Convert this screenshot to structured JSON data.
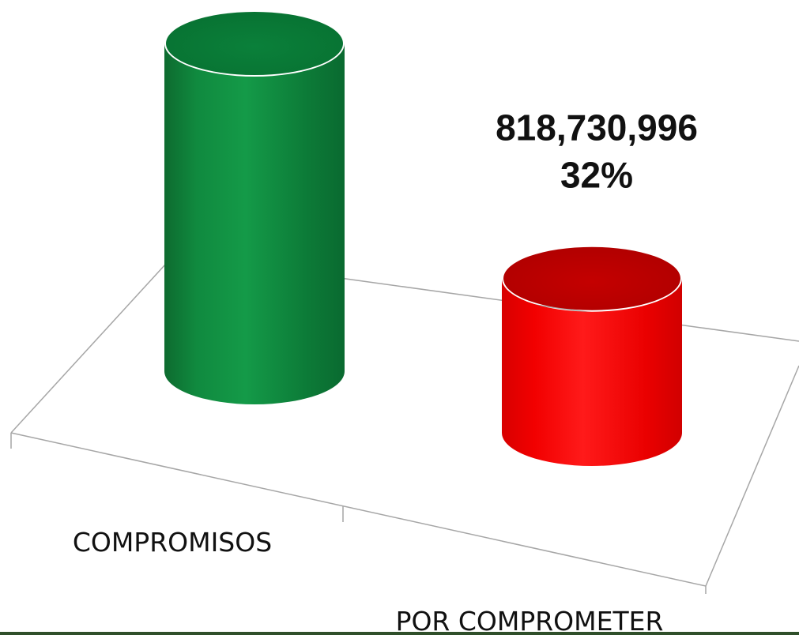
{
  "chart_data": {
    "type": "bar",
    "categories": [
      "COMPROMISOS",
      "POR COMPROMETER"
    ],
    "values": [
      1739803367,
      818730996
    ],
    "data_labels": [
      null,
      {
        "value": "818,730,996",
        "percent": "32%"
      }
    ],
    "colors": [
      "#0b8a3e",
      "#ee0000"
    ],
    "percent": [
      68,
      32
    ],
    "title": "",
    "xlabel": "",
    "ylabel": "",
    "ylim": [
      0,
      1739803367
    ],
    "grid": false,
    "legend": "none",
    "style": "3d-cylinder"
  }
}
